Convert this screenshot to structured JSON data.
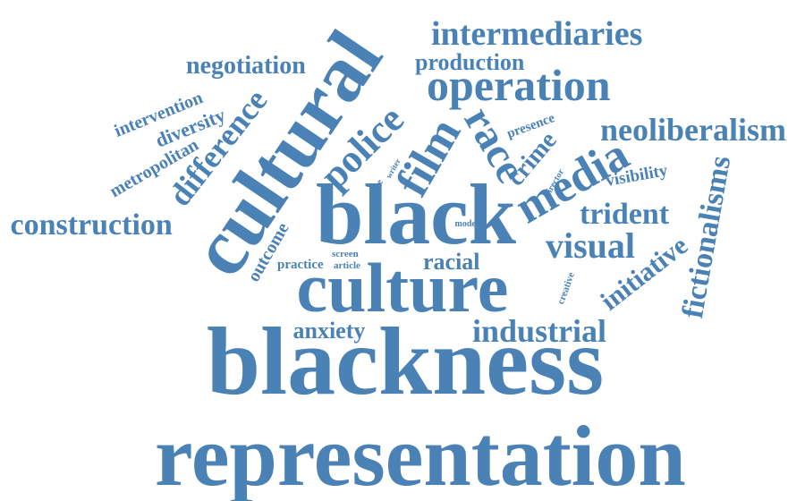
{
  "colors": {
    "word": "#4a82b6",
    "background": "#ffffff"
  },
  "words": [
    "representation",
    "blackness",
    "culture",
    "black",
    "cultural",
    "media",
    "film",
    "race",
    "operation",
    "intermediaries",
    "neoliberalism",
    "police",
    "construction",
    "difference",
    "fictionalisms",
    "visual",
    "trident",
    "industrial",
    "initiative",
    "crime",
    "negotiation",
    "production",
    "anxiety",
    "racial",
    "visibility",
    "diversity",
    "intervention",
    "metropolitan",
    "outcome",
    "presence",
    "practice",
    "creative",
    "director",
    "value",
    "writer",
    "mode",
    "screen",
    "article"
  ]
}
